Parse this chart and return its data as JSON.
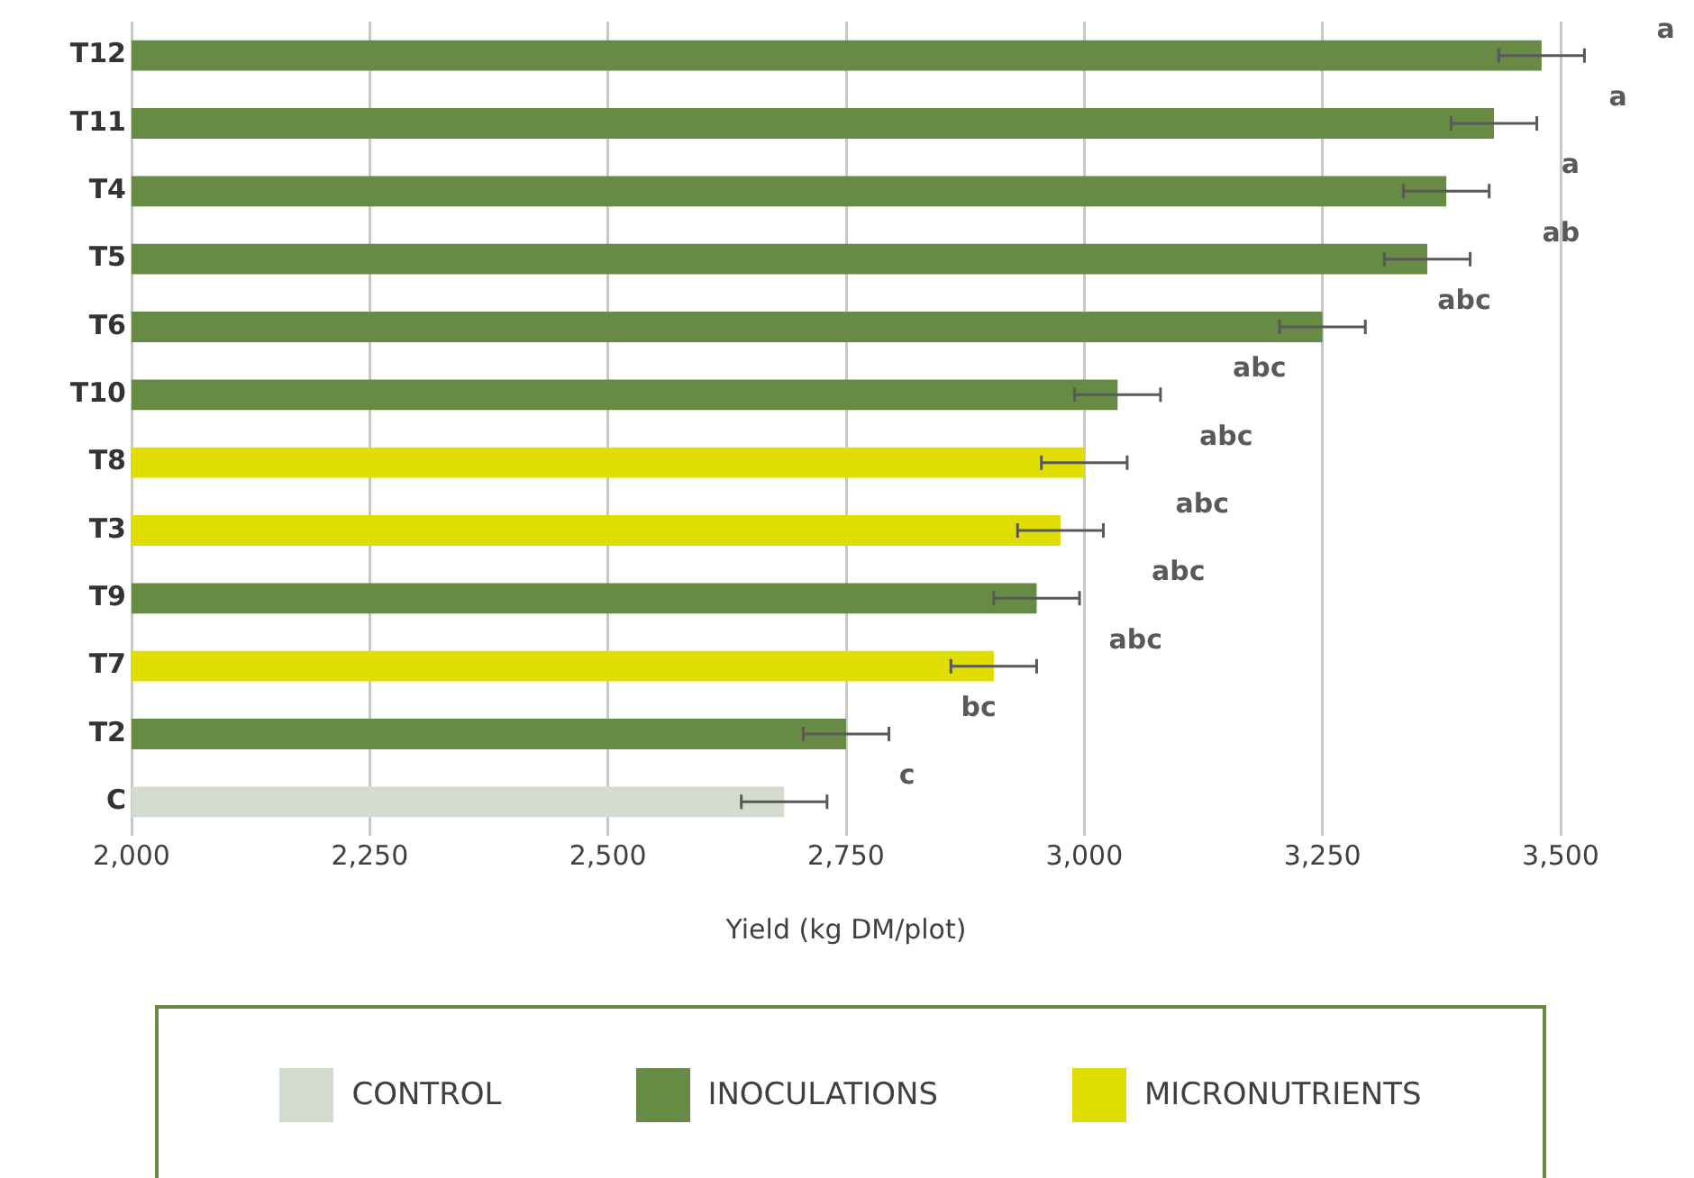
{
  "chart_data": {
    "type": "bar",
    "orientation": "horizontal",
    "stacked": true,
    "xlabel": "Yield (kg DM/plot)",
    "categories": [
      "T12",
      "T11",
      "T4",
      "T5",
      "T6",
      "T10",
      "T8",
      "T3",
      "T9",
      "T7",
      "T2",
      "C"
    ],
    "series": [
      {
        "name": "CONTROL",
        "color": "#d3dccf",
        "values": [
          null,
          null,
          null,
          null,
          null,
          null,
          null,
          null,
          null,
          null,
          null,
          2685
        ],
        "errors": [
          null,
          null,
          null,
          null,
          null,
          null,
          null,
          null,
          null,
          null,
          null,
          45
        ]
      },
      {
        "name": "INOCULATIONS",
        "color": "#678a44",
        "values": [
          3480,
          3430,
          3380,
          3360,
          3250,
          3035,
          null,
          null,
          2950,
          null,
          2750,
          null
        ],
        "errors": [
          45,
          45,
          45,
          45,
          45,
          45,
          null,
          null,
          45,
          null,
          45,
          null
        ]
      },
      {
        "name": "MICRONUTRIENTS",
        "color": "#e0dd00",
        "values": [
          null,
          null,
          null,
          null,
          null,
          null,
          3000,
          2975,
          null,
          2905,
          null,
          null
        ],
        "errors": [
          null,
          null,
          null,
          null,
          null,
          null,
          45,
          45,
          null,
          45,
          null,
          null
        ]
      }
    ],
    "xlim": [
      2000,
      3500
    ],
    "xticks": [
      {
        "value": 2000,
        "label": "2,000"
      },
      {
        "value": 2250,
        "label": "2,250"
      },
      {
        "value": 2500,
        "label": "2,500"
      },
      {
        "value": 2750,
        "label": "2,750"
      },
      {
        "value": 3000,
        "label": "3,000"
      },
      {
        "value": 3250,
        "label": "3,250"
      },
      {
        "value": 3500,
        "label": "3,500"
      }
    ],
    "grid": "x",
    "legend": "bottom",
    "annotations": [
      "a",
      "a",
      "a",
      "ab",
      "abc",
      "abc",
      "abc",
      "abc",
      "abc",
      "abc",
      "bc",
      "c"
    ]
  }
}
